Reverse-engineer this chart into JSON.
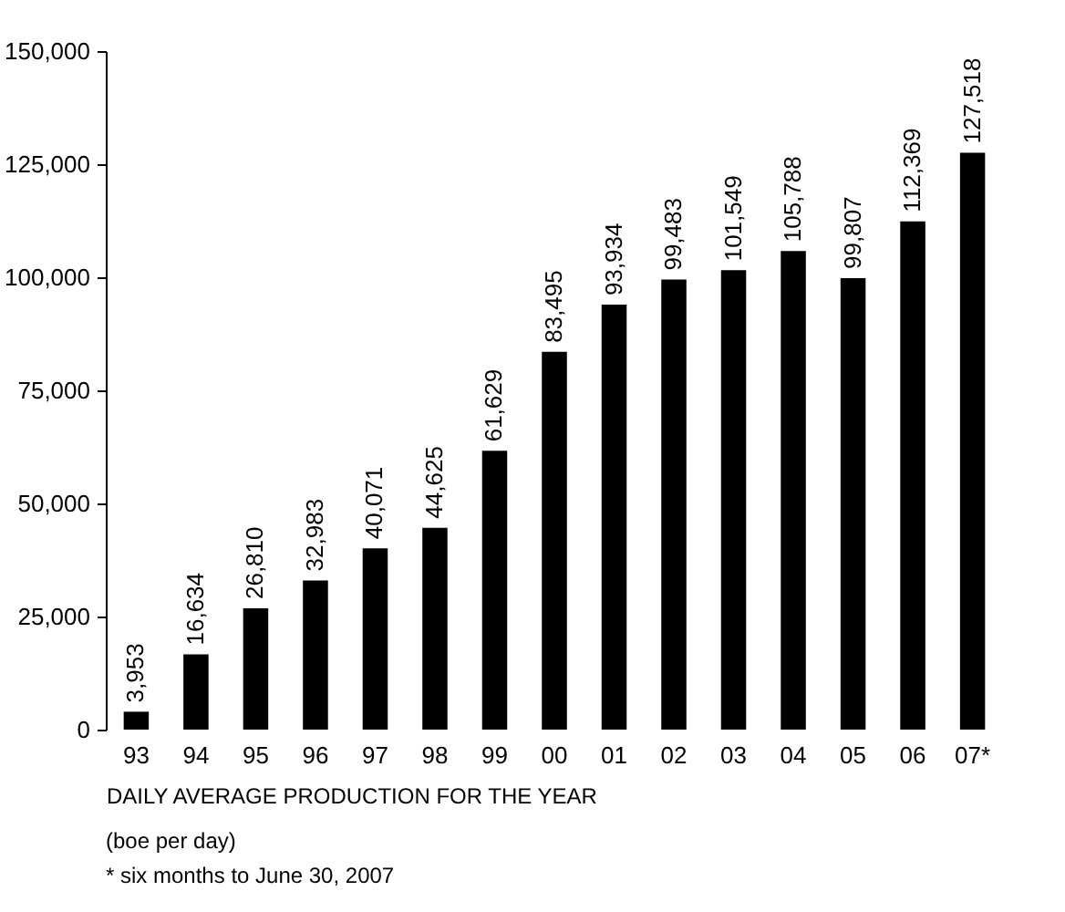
{
  "chart_data": {
    "type": "bar",
    "categories": [
      "93",
      "94",
      "95",
      "96",
      "97",
      "98",
      "99",
      "00",
      "01",
      "02",
      "03",
      "04",
      "05",
      "06",
      "07*"
    ],
    "values": [
      3953,
      16634,
      26810,
      32983,
      40071,
      44625,
      61629,
      83495,
      93934,
      99483,
      101549,
      105788,
      99807,
      112369,
      127518
    ],
    "value_labels": [
      "3,953",
      "16,634",
      "26,810",
      "32,983",
      "40,071",
      "44,625",
      "61,629",
      "83,495",
      "93,934",
      "99,483",
      "101,549",
      "105,788",
      "99,807",
      "112,369",
      "127,518"
    ],
    "color": "#000000",
    "ylim": [
      0,
      150000
    ],
    "yticks": [
      0,
      {
        "value": 25000,
        "label": "25,000"
      },
      {
        "value": 50000,
        "label": "50,000"
      },
      {
        "value": 75000,
        "label": "75,000"
      },
      {
        "value": 100000,
        "label": "100,000"
      },
      {
        "value": 125000,
        "label": "125,000"
      },
      {
        "value": 150000,
        "label": "150,000"
      }
    ],
    "grid": false,
    "xlabel": "DAILY AVERAGE  PRODUCTION FOR THE YEAR",
    "annotations": [
      "(boe per day)",
      "* six months to June 30, 2007"
    ]
  }
}
